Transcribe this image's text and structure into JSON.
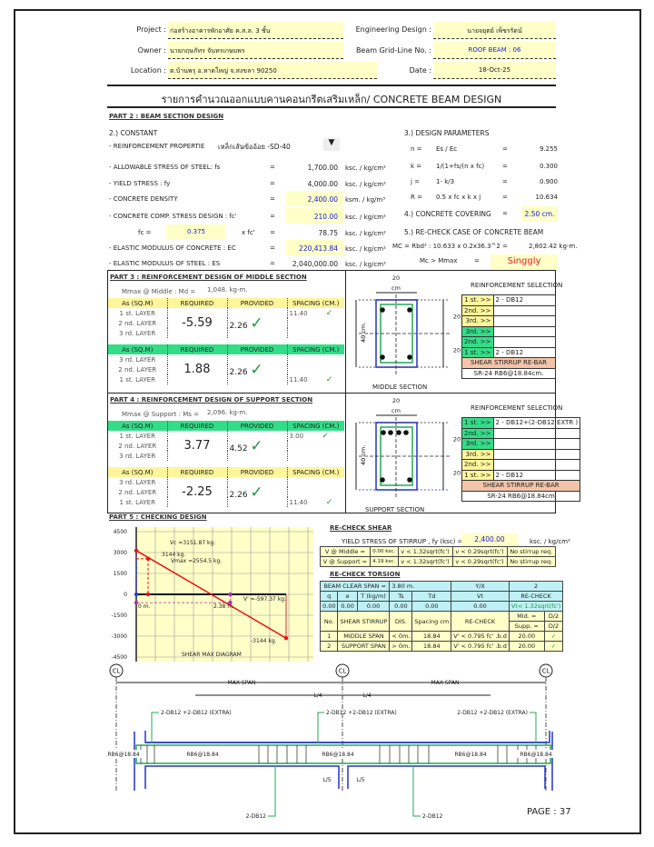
{
  "header": {
    "project_label": "Project :",
    "project": "ก่อสร้างอาคารพักอาศัย ค.ส.ล. 3 ชั้น",
    "owner_label": "Owner :",
    "owner": "นายกฤษภัทร  จันทรเกษมพร",
    "location_label": "Location :",
    "location": "ต.บ้านพรุ อ.หาดใหญ่ จ.สงขลา  90250",
    "engineer_label": "Engineering Design :",
    "engineer": "นายจยุตย์  เพ็ชรรัตน์",
    "grid_label": "Beam Grid-Line No. :",
    "grid": "ROOF BEAM : 06",
    "date_label": "Date :",
    "date": "18-Oct-25",
    "title": "รายการคำนวณออกแบบคานคอนกรีตเสริมเหล็ก/ CONCRETE BEAM DESIGN"
  },
  "part2": {
    "title": "PART 2 : BEAM SECTION DESIGN",
    "constant_title": "2.)  CONSTANT",
    "rows": [
      {
        "label": "-  REINFORCEMENT PROPERTIE",
        "value": "เหล็กเส้นข้ออ้อย -SD-40",
        "unit": ""
      },
      {
        "label": "-  ALLOWABLE STRESS OF STEEL: fs",
        "value": "1,700.00",
        "unit": "ksc. / kg/cm²"
      },
      {
        "label": "-  YIELD STRESS : fy",
        "value": "4,000.00",
        "unit": "ksc. / kg/cm²"
      },
      {
        "label": "-  CONCRETE DENSITY",
        "value": "2,400.00",
        "unit": "ksm. / kg/m³"
      },
      {
        "label": "-  CONCRETE COMP. STRESS DESIGN : fc'",
        "value": "210.00",
        "unit": "ksc. / kg/cm²"
      },
      {
        "label": "fc  =",
        "value": "78.75",
        "unit": "ksc. / kg/cm²",
        "factor": "0.375",
        "factor_label": "x fc'"
      },
      {
        "label": "-  ELASTIC MODULUS OF CONCRETE : EC",
        "value": "220,413.84",
        "unit": "ksc. / kg/cm²"
      },
      {
        "label": "-  ELASTIC MODULUS OF STEEL : ES",
        "value": "2,040,000.00",
        "unit": "ksc. / kg/cm²"
      }
    ],
    "eq": "=",
    "params_title": "3.)  DESIGN PARAMETERS",
    "params": [
      {
        "sym": "n =",
        "expr": "Es / Ec",
        "value": "9.255"
      },
      {
        "sym": "k =",
        "expr": "1/(1+fs/(n x fc)",
        "value": "0.300"
      },
      {
        "sym": "j =",
        "expr": "1- k/3",
        "value": "0.900"
      },
      {
        "sym": "R =",
        "expr": "0.5 x fc x k x j",
        "value": "10.634"
      }
    ],
    "covering_label": "4.)  CONCRETE COVERING",
    "covering": "2.50 cm.",
    "recheck_title": "5.) RE-CHECK CASE OF CONCRETE BEAM",
    "mc_expr": "MC = Rbd² : 10.633 x 0.2x36.3^2",
    "mc_value": "2,802.42 kg-m.",
    "mc_cmp": "Mc  >  Mmax",
    "mc_result": "Singgly"
  },
  "part3": {
    "title": "PART 3 : REINFORCEMENT DESIGN OF MIDDLE SECTION",
    "moment": "Mmax @ Middle : Md =",
    "moment_value": "1,048. kg-m.",
    "headers": [
      "As (SQ.M)",
      "REQUIRED",
      "PROVIDED",
      "SPACING (CM.)"
    ],
    "top": {
      "layers": [
        "1 st. LAYER",
        "2 nd. LAYER",
        "3 rd. LAYER"
      ],
      "required": "-5.59",
      "provided": "2.26",
      "spacing": "11.40"
    },
    "bottom": {
      "layers": [
        "3 rd. LAYER",
        "2 nd. LAYER",
        "1 st. LAYER"
      ],
      "required": "1.88",
      "provided": "2.26",
      "spacing": "11.40"
    },
    "section_label": "MIDDLE SECTION",
    "width": "20",
    "width_unit": "cm",
    "height": "40 cm.",
    "half1": "20",
    "half2": "20",
    "sel_title": "REINFORCEMENT SELECTION",
    "sel": [
      {
        "k": "1 st. >>",
        "v": "2 - DB12"
      },
      {
        "k": "2nd. >>",
        "v": ""
      },
      {
        "k": "3rd. >>",
        "v": ""
      },
      {
        "k": "3rd. >>",
        "v": ""
      },
      {
        "k": "2nd. >>",
        "v": ""
      },
      {
        "k": "1 st. >>",
        "v": "2 - DB12"
      }
    ],
    "stirrup_title": "SHEAR STIRRUP RE-BAR",
    "stirrup": "SR-24 RB6@18.84cm."
  },
  "part4": {
    "title": "PART 4 : REINFORCEMENT DESIGN OF SUPPORT SECTION",
    "moment": "Mmax @ Support : Ms =",
    "moment_value": "2,096. kg-m.",
    "headers": [
      "As (SQ.M)",
      "REQUIRED",
      "PROVIDED",
      "SPACING (CM.)"
    ],
    "top": {
      "layers": [
        "1 st. LAYER",
        "2 nd. LAYER",
        "3 rd. LAYER"
      ],
      "required": "3.77",
      "provided": "4.52",
      "spacing": "3.00"
    },
    "bottom": {
      "layers": [
        "3 rd. LAYER",
        "2 nd. LAYER",
        "1 st. LAYER"
      ],
      "required": "-2.25",
      "provided": "2.26",
      "spacing": "11.40"
    },
    "section_label": "SUPPORT SECTION",
    "width": "20",
    "width_unit": "cm",
    "height": "40 cm.",
    "half1": "20",
    "half2": "20",
    "sel_title": "REINFORCEMENT SELECTION",
    "sel": [
      {
        "k": "1 st. >>",
        "v": "2 - DB12+(2-DB12 EXTR )"
      },
      {
        "k": "2nd. >>",
        "v": ""
      },
      {
        "k": "3rd. >>",
        "v": ""
      },
      {
        "k": "3rd. >>",
        "v": ""
      },
      {
        "k": "2nd. >>",
        "v": ""
      },
      {
        "k": "1 st. >>",
        "v": "2 - DB12"
      }
    ],
    "stirrup_title": "SHEAR STIRRUP RE-BAR",
    "stirrup": "SR-24 RB6@18.84cm"
  },
  "part5": {
    "title": "PART 5 : CHECKING DESIGN",
    "shear_title": "RE-CHECK SHEAR",
    "fy_label": "YIELD STRESS OF STIRRUP , fy (ksc)  =",
    "fy": "2,400.00",
    "fy_unit": "ksc. / kg/cm²",
    "shear_rows": [
      [
        "V @ Middle =",
        "0.00 ksc.",
        "v < 1.32sqrt(fc')",
        "v < 0.29sqrt(fc')",
        "No stirrup req."
      ],
      [
        "V @ Support =",
        "4.19 ksc.",
        "v < 1.32sqrt(fc')",
        "v < 0.29sqrt(fc')",
        "No stirrup req."
      ]
    ],
    "torsion_title": "RE-CHECK TORSION",
    "span_label": "BEAM CLEAR SPAN =",
    "span": "3.80 m.",
    "yx_label": "Y/X",
    "yx": "2",
    "torsion_headers": [
      "q",
      "e",
      "T (kg/m)",
      "Ts",
      "Td",
      "Vt",
      "RE-CHECK"
    ],
    "torsion_values": [
      "0.00",
      "0.00",
      "0.00",
      "0.00",
      "0.00",
      "0.00",
      "Vt< 1.32sqrt(fc')"
    ],
    "stirrup_headers": [
      "No.",
      "SHEAR STIRRUP",
      "DIS.",
      "Spacing cm",
      "RE-CHECK",
      "Mid. =",
      "D/2",
      "Supp. =",
      "D/2"
    ],
    "stirrup_rows": [
      [
        "1",
        "MIDDLE SPAN",
        "< 0m.",
        "18.84",
        "V' < 0.795 fc' .b.d",
        "20.00"
      ],
      [
        "2",
        "SUPPORT SPAN",
        "> 0m.",
        "18.84",
        "V' < 0.795 fc' .b.d",
        "20.00"
      ]
    ]
  },
  "chart_data": {
    "type": "line",
    "title": "SHEAR MAX DIAGRAM",
    "ylim": [
      -4500,
      4500
    ],
    "yticks": [
      "4500",
      "3000",
      "1500",
      "0",
      "-1500",
      "-3000",
      "-4500"
    ],
    "grid": true,
    "series": [
      {
        "x": [
          0,
          3.8
        ],
        "y": [
          3144,
          -3144
        ]
      }
    ],
    "annotations": [
      "Vc =3151.87 kg.",
      "3144 kg.",
      "Vmax =2554.5 kg.",
      "0 m.",
      "2.38 m.",
      "V' =-597.37 kg.",
      "-3144 kg."
    ],
    "points": {
      "vmax_x": 0.3,
      "vmax": 2554.5,
      "vprime_x": 2.38,
      "vprime": -597.37,
      "vc": 3151.87
    }
  },
  "beam": {
    "cl": "CL",
    "max_span": "MAX SPAN",
    "l4": "L/4",
    "l5": "L/5",
    "top_bar": "2-DB12 +2-DB12 (EXTRA)",
    "bottom_bar": "2-DB12",
    "stirrup": "RB6@18.84"
  },
  "page": "PAGE : 37",
  "colors": {
    "yellow": "#ffffc8",
    "header_yellow": "#fff59a",
    "header_green": "#33dd88",
    "check": "#1a9a3a",
    "shear_line": "#ee1111"
  }
}
